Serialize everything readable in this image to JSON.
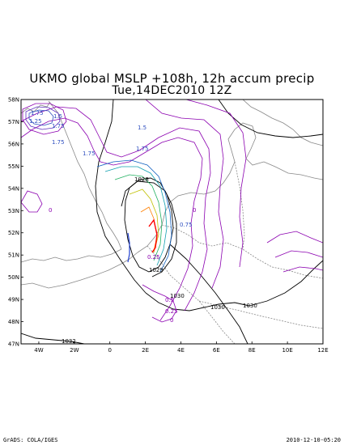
{
  "title_line1": "UKMO global MSLP +108h, 12h accum precip",
  "title_line2": "Tue,14DEC2010 12Z",
  "footer_left": "GrADS: COLA/IGES",
  "footer_right": "2010-12-10-05:20",
  "map": {
    "lon_range": [
      -5,
      12
    ],
    "lat_range": [
      47,
      58
    ],
    "lon_ticks": [
      "4W",
      "2W",
      "0",
      "2E",
      "4E",
      "6E",
      "8E",
      "10E",
      "12E"
    ],
    "lat_ticks": [
      "58N",
      "57N",
      "56N",
      "55N",
      "54N",
      "53N",
      "52N",
      "51N",
      "50N",
      "49N",
      "48N",
      "47N"
    ],
    "mslp_labels": [
      "1028",
      "1029",
      "1030",
      "1030",
      "1030",
      "1032"
    ],
    "precip_labels": [
      "1.75",
      "1.5",
      "1.75",
      "1.75",
      "1.75",
      "1.5",
      "1.75",
      "1.25",
      "0.25",
      "0.5",
      "0.25",
      "0",
      "0",
      "0",
      "0.75"
    ],
    "colors": {
      "coast": "#888888",
      "mslp": "#000000",
      "precip_low": "#8b00b0",
      "precip_mid": "#1060c0",
      "precip_high": "#ff0000"
    }
  }
}
